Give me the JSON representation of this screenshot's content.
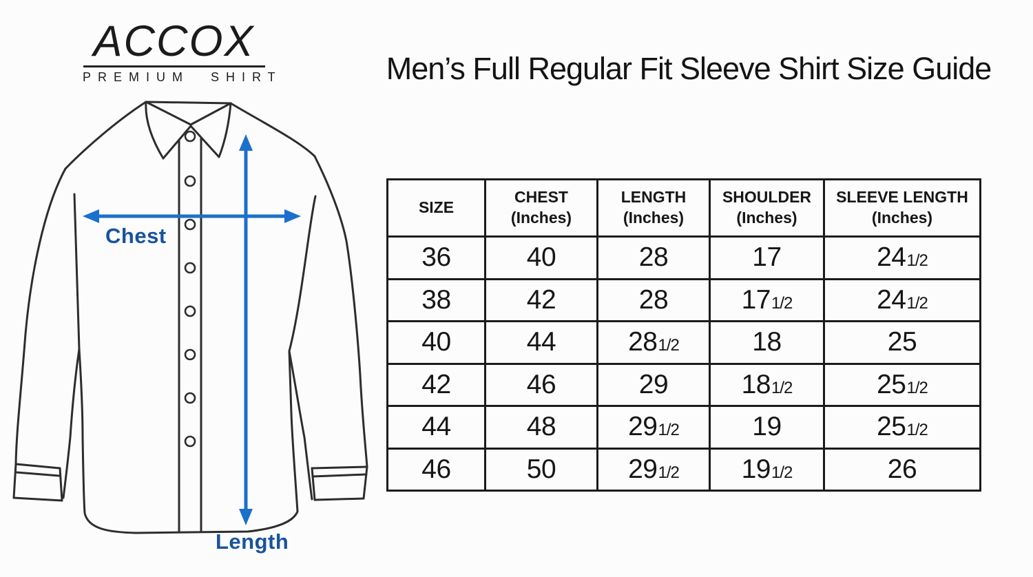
{
  "page": {
    "background": "#fcfcfc"
  },
  "logo": {
    "brand": "ACCOX",
    "tagline": "PREMIUM SHIRT"
  },
  "header": {
    "title": "Men’s Full Regular Fit Sleeve Shirt Size Guide"
  },
  "diagram": {
    "chest_label": "Chest",
    "length_label": "Length",
    "arrow_color": "#1b70cc",
    "label_color": "#17539f",
    "sketch_color": "#2d2d2d"
  },
  "size_table": {
    "border_color": "#1b1b1b",
    "columns": [
      {
        "label": "SIZE",
        "sub": ""
      },
      {
        "label": "CHEST",
        "sub": "(Inches)"
      },
      {
        "label": "LENGTH",
        "sub": "(Inches)"
      },
      {
        "label": "SHOULDER",
        "sub": "(Inches)"
      },
      {
        "label": "SLEEVE LENGTH",
        "sub": "(Inches)"
      }
    ],
    "rows": [
      [
        {
          "v": "36"
        },
        {
          "v": "40"
        },
        {
          "v": "28"
        },
        {
          "v": "17"
        },
        {
          "v": "24",
          "f": "1/2"
        }
      ],
      [
        {
          "v": "38"
        },
        {
          "v": "42"
        },
        {
          "v": "28"
        },
        {
          "v": "17",
          "f": "1/2"
        },
        {
          "v": "24",
          "f": "1/2"
        }
      ],
      [
        {
          "v": "40"
        },
        {
          "v": "44"
        },
        {
          "v": "28",
          "f": "1/2"
        },
        {
          "v": "18"
        },
        {
          "v": "25"
        }
      ],
      [
        {
          "v": "42"
        },
        {
          "v": "46"
        },
        {
          "v": "29"
        },
        {
          "v": "18",
          "f": "1/2"
        },
        {
          "v": "25",
          "f": "1/2"
        }
      ],
      [
        {
          "v": "44"
        },
        {
          "v": "48"
        },
        {
          "v": "29",
          "f": "1/2"
        },
        {
          "v": "19"
        },
        {
          "v": "25",
          "f": "1/2"
        }
      ],
      [
        {
          "v": "46"
        },
        {
          "v": "50"
        },
        {
          "v": "29",
          "f": "1/2"
        },
        {
          "v": "19",
          "f": "1/2"
        },
        {
          "v": "26"
        }
      ]
    ]
  }
}
